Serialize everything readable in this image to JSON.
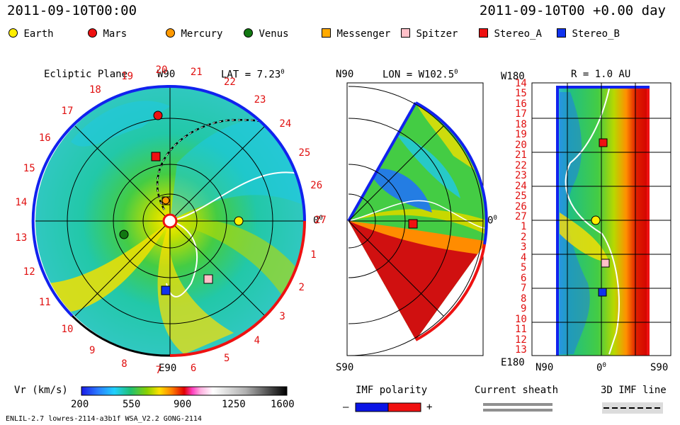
{
  "header": {
    "left_datetime": "2011-09-10T00:00",
    "right_datetime": "2011-09-10T00 +0.00 day"
  },
  "legend": [
    {
      "name": "Earth",
      "color": "#ffee00",
      "shape": "circle"
    },
    {
      "name": "Mars",
      "color": "#ee1111",
      "shape": "circle"
    },
    {
      "name": "Mercury",
      "color": "#ff9900",
      "shape": "circle"
    },
    {
      "name": "Venus",
      "color": "#117711",
      "shape": "circle"
    },
    {
      "name": "Messenger",
      "color": "#ffaa00",
      "shape": "square"
    },
    {
      "name": "Spitzer",
      "color": "#ffc0c8",
      "shape": "square"
    },
    {
      "name": "Stereo_A",
      "color": "#ee1111",
      "shape": "square"
    },
    {
      "name": "Stereo_B",
      "color": "#1133ee",
      "shape": "square"
    }
  ],
  "panels": {
    "ecliptic": {
      "title": "Ecliptic Plane",
      "lat_label": "LAT = 7.23",
      "lat_deg_sup": "0",
      "top_label": "W90",
      "bottom_label": "E90",
      "right_label": "0",
      "right_sup": "0",
      "carrington_ticks": [
        "1",
        "2",
        "3",
        "4",
        "5",
        "6",
        "7",
        "8",
        "9",
        "10",
        "11",
        "12",
        "13",
        "14",
        "15",
        "16",
        "17",
        "18",
        "19",
        "20",
        "21",
        "22",
        "23",
        "24",
        "25",
        "26",
        "27"
      ]
    },
    "meridional": {
      "top_left_label": "N90",
      "lon_label": "LON = W102.5",
      "lon_deg_sup": "0",
      "right_label": "0",
      "right_sup": "0",
      "bottom_label": "S90"
    },
    "radial": {
      "top_left_label": "W180",
      "r_label": "R = 1.0 AU",
      "y_ticks": [
        "14",
        "15",
        "16",
        "17",
        "18",
        "19",
        "20",
        "21",
        "22",
        "23",
        "24",
        "25",
        "26",
        "27",
        "1",
        "2",
        "3",
        "4",
        "5",
        "6",
        "7",
        "8",
        "9",
        "10",
        "11",
        "12",
        "13"
      ],
      "bottom_left_label": "E180",
      "x_ticks": [
        "N90",
        "0",
        "S90"
      ],
      "x_mid_sup": "0"
    }
  },
  "colorbar": {
    "label": "Vr (km/s)",
    "ticks": [
      "200",
      "550",
      "900",
      "1250",
      "1600"
    ],
    "range": [
      200,
      1600
    ]
  },
  "imf_polarity": {
    "label": "IMF polarity",
    "minus": "–",
    "plus": "+",
    "colors": [
      "#0a14e6",
      "#f01010"
    ]
  },
  "current_sheath": {
    "label": "Current sheath"
  },
  "imf_line": {
    "label": "3D IMF line"
  },
  "footer": {
    "model_info": "ENLIL-2.7 lowres-2114-a3b1f WSA_V2.2 GONG-2114"
  },
  "chart_data": [
    {
      "type": "heatmap",
      "title": "Ecliptic Plane",
      "quantity": "Vr (km/s)",
      "bodies": [
        {
          "name": "Earth",
          "angle_deg": 0,
          "r_au": 1.0
        },
        {
          "name": "Mars",
          "angle_deg": 96,
          "r_au": 1.55
        },
        {
          "name": "Mercury",
          "angle_deg": 83,
          "r_au": 0.29
        },
        {
          "name": "Venus",
          "angle_deg": 190,
          "r_au": 0.69
        },
        {
          "name": "Messenger",
          "angle_deg": 83,
          "r_au": 0.29
        },
        {
          "name": "Spitzer",
          "angle_deg": -50,
          "r_au": 1.0
        },
        {
          "name": "Stereo_A",
          "angle_deg": 104,
          "r_au": 0.97
        },
        {
          "name": "Stereo_B",
          "angle_deg": -95,
          "r_au": 1.05
        }
      ]
    },
    {
      "type": "heatmap",
      "title": "LON = W102.5",
      "quantity": "Vr (km/s)",
      "bodies": [
        {
          "name": "Stereo_A",
          "angle_deg": -2,
          "r_au": 0.97
        }
      ]
    },
    {
      "type": "heatmap",
      "title": "R = 1.0 AU",
      "quantity": "Vr (km/s)",
      "bodies": [
        {
          "name": "Stereo_A",
          "carrington": 20,
          "lat": 0
        },
        {
          "name": "Earth",
          "carrington": 27,
          "lat": 7
        },
        {
          "name": "Spitzer",
          "carrington": 4,
          "lat": 0
        },
        {
          "name": "Stereo_B",
          "carrington": 7,
          "lat": 0
        }
      ]
    }
  ]
}
